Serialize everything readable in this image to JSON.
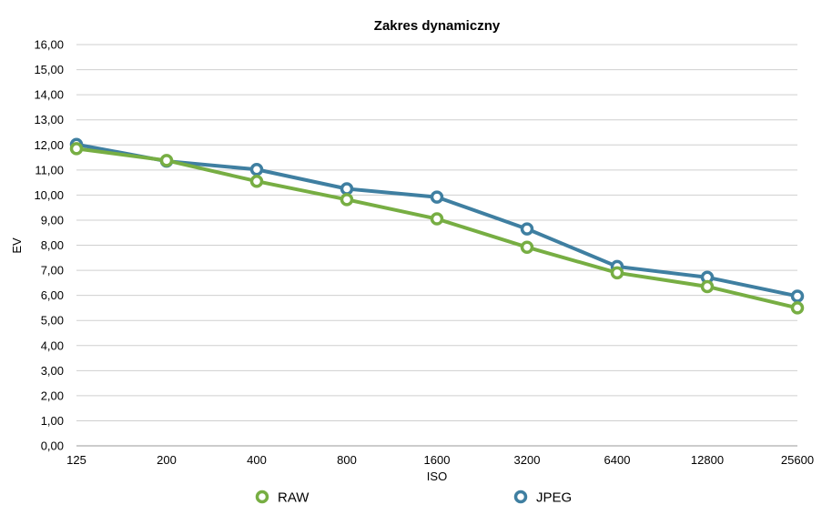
{
  "chart_data": {
    "type": "line",
    "title": "Zakres dynamiczny",
    "xlabel": "ISO",
    "ylabel": "EV",
    "categories": [
      "125",
      "200",
      "400",
      "800",
      "1600",
      "3200",
      "6400",
      "12800",
      "25600"
    ],
    "series": [
      {
        "name": "RAW",
        "color": "#77ae43",
        "values": [
          11.85,
          11.38,
          10.55,
          9.82,
          9.05,
          7.92,
          6.9,
          6.35,
          5.5
        ]
      },
      {
        "name": "JPEG",
        "color": "#3f7fa1",
        "values": [
          12.02,
          11.35,
          11.02,
          10.25,
          9.92,
          8.65,
          7.15,
          6.72,
          5.97
        ]
      }
    ],
    "ylim": [
      0,
      16
    ],
    "ytick_step": 1,
    "ytick_labels": [
      "0,00",
      "1,00",
      "2,00",
      "3,00",
      "4,00",
      "5,00",
      "6,00",
      "7,00",
      "8,00",
      "9,00",
      "10,00",
      "11,00",
      "12,00",
      "13,00",
      "14,00",
      "15,00",
      "16,00"
    ],
    "grid": true,
    "legend": "bottom"
  }
}
